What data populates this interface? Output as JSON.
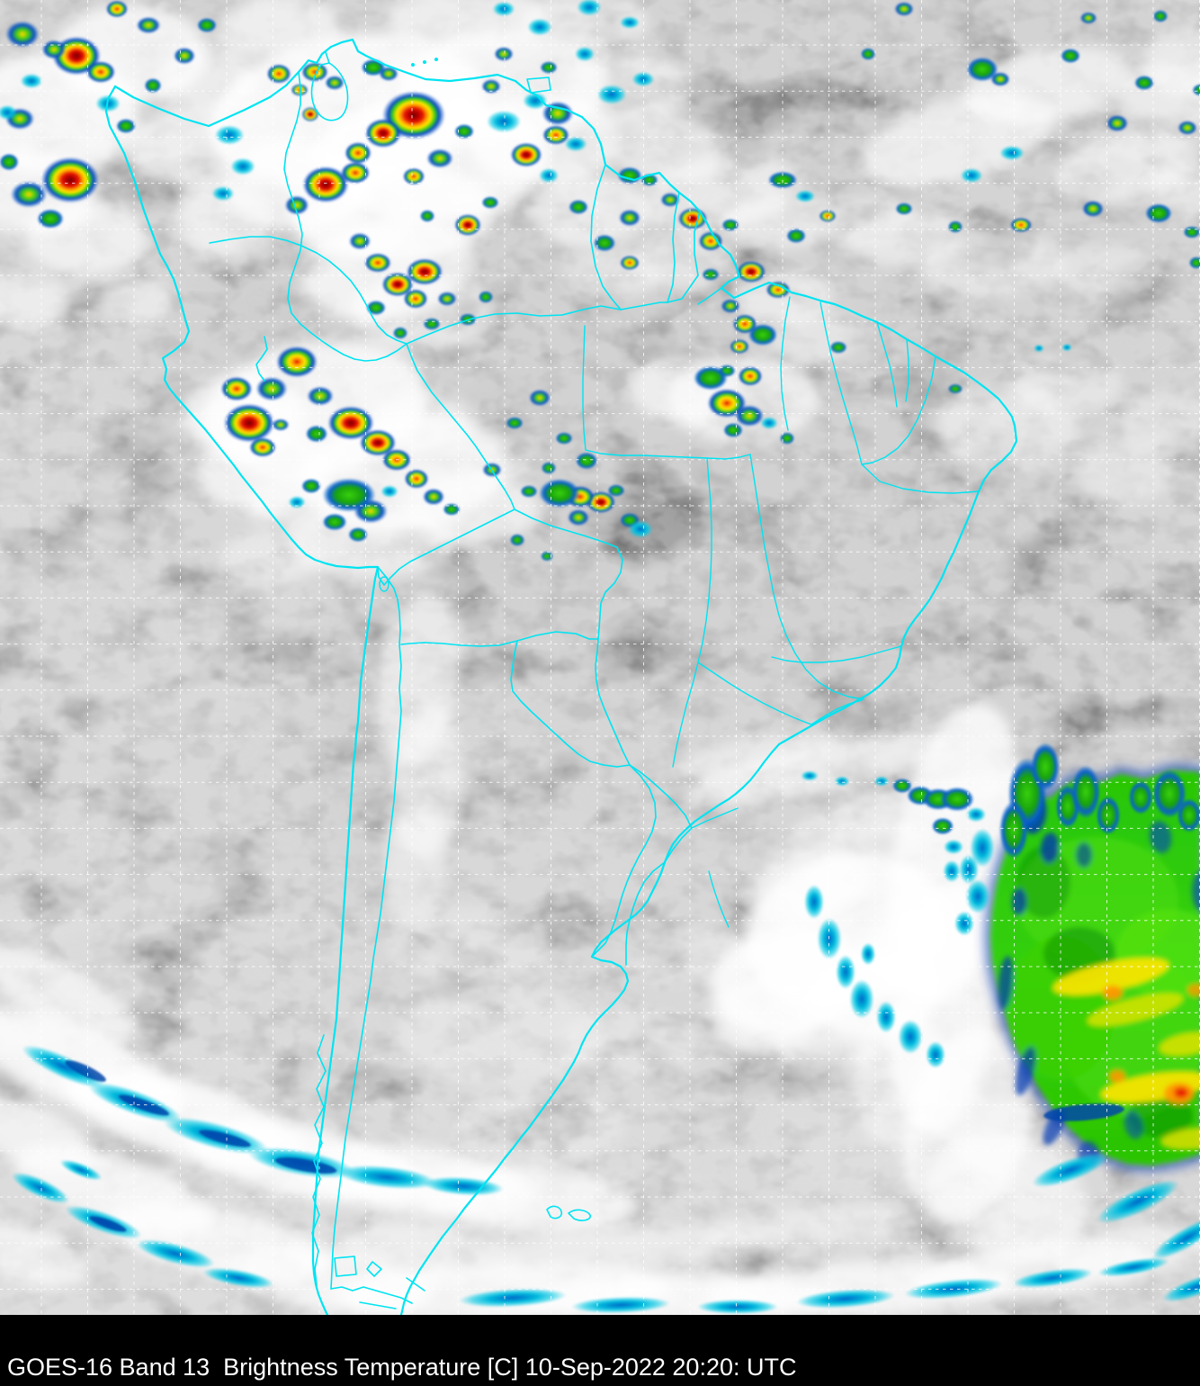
{
  "caption": {
    "satellite": "GOES-16",
    "band": "Band 13",
    "product": "Brightness Temperature",
    "units": "[C]",
    "date": "10-Sep-2022",
    "time": "20:20:",
    "timezone": "UTC",
    "full_text": "GOES-16 Band 13  Brightness Temperature [C] 10-Sep-2022 20:20: UTC"
  },
  "map": {
    "region": "South America",
    "colors": {
      "base_gray": "#8f8f8f",
      "caption_background": "#000000",
      "caption_text": "#ffffff",
      "graticule": "#ffffff",
      "political_borders": "#00e4f2"
    },
    "graticule_style": "dashed",
    "ir_enhancement_cold_scale": [
      "#00c8dc",
      "#0848c0",
      "#30c810",
      "#ffe800",
      "#ff9800",
      "#e81800",
      "#6e0000"
    ]
  }
}
